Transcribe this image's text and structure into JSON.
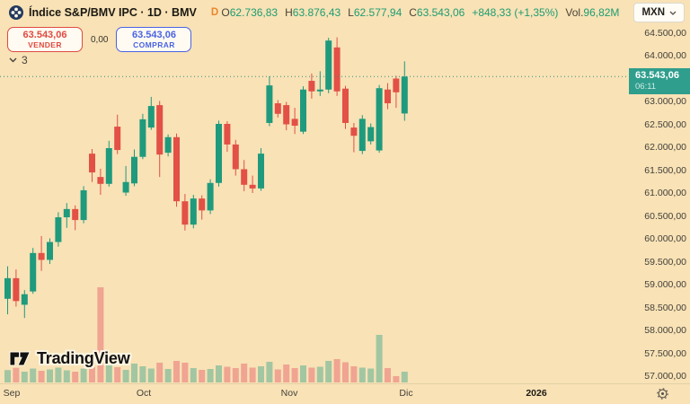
{
  "header": {
    "title": "Índice S&P/BMV IPC · 1D · BMV",
    "interval_letter": "D",
    "ohlc": {
      "o_label": "O",
      "o_value": "62.736,83",
      "h_label": "H",
      "h_value": "63.876,43",
      "l_label": "L",
      "l_value": "62.577,94",
      "c_label": "C",
      "c_value": "63.543,06",
      "change": "+848,33 (+1,35%)"
    },
    "vol_label": "Vol.",
    "vol_value": "96,82M",
    "currency": "MXN"
  },
  "trade_panel": {
    "sell_price": "63.543,06",
    "sell_label": "VENDER",
    "spread": "0,00",
    "buy_price": "63.543,06",
    "buy_label": "COMPRAR",
    "collapse_count": "3"
  },
  "price_scale": {
    "current_price": "63.543,06",
    "current_time": "06:11"
  },
  "logo": {
    "brand": "TradingView"
  },
  "colors": {
    "background": "#f8e2b6",
    "up": "#1f9a7d",
    "down": "#e25046",
    "vol_up": "#a2c6a2",
    "vol_down": "#f0a492",
    "accent": "#2f9e8d",
    "price_line": "#34907e",
    "sell_red": "#df4a41",
    "buy_blue": "#4a63e4",
    "interval_orange": "#e8872e",
    "value_green": "#1e9c72"
  },
  "chart_data": {
    "type": "candlestick",
    "title": "Índice S&P/BMV IPC, 1D, BMV",
    "symbol": "Índice S&P/BMV IPC",
    "exchange": "BMV",
    "interval": "1D",
    "currency": "MXN",
    "ohlc_today": {
      "open": 62736.83,
      "high": 63876.43,
      "low": 62577.94,
      "close": 63543.06,
      "change": 848.33,
      "change_pct": 1.35,
      "volume_label": "96,82M"
    },
    "current_price": 63543.06,
    "current_price_time": "06:11",
    "ylim": [
      56800,
      64800
    ],
    "y_ticks": [
      64500,
      64000,
      63500,
      63000,
      62500,
      62000,
      61500,
      61000,
      60500,
      60000,
      59500,
      59000,
      58500,
      58000,
      57500,
      57000
    ],
    "time_labels": [
      {
        "text": "Sep",
        "x": 13,
        "bold": false
      },
      {
        "text": "Oct",
        "x": 160,
        "bold": false
      },
      {
        "text": "Nov",
        "x": 322,
        "bold": false
      },
      {
        "text": "Dic",
        "x": 452,
        "bold": false
      },
      {
        "text": "2026",
        "x": 597,
        "bold": true
      }
    ],
    "volume_unit": "M (estimated from bar heights)",
    "candles_format": [
      "open",
      "high",
      "low",
      "close",
      "volume_m"
    ],
    "candles": [
      [
        58690,
        59400,
        58350,
        59140,
        55
      ],
      [
        59140,
        59330,
        58520,
        58640,
        65
      ],
      [
        58560,
        58880,
        58270,
        58790,
        48
      ],
      [
        58850,
        59800,
        58800,
        59690,
        62
      ],
      [
        59690,
        60060,
        59300,
        59540,
        52
      ],
      [
        59540,
        60010,
        59450,
        59930,
        58
      ],
      [
        59930,
        60580,
        59830,
        60470,
        66
      ],
      [
        60470,
        60780,
        60240,
        60650,
        54
      ],
      [
        60650,
        60730,
        60190,
        60410,
        48
      ],
      [
        60410,
        61150,
        60340,
        61060,
        62
      ],
      [
        61860,
        61960,
        61240,
        61450,
        70
      ],
      [
        61350,
        61530,
        60960,
        61200,
        424
      ],
      [
        61200,
        62140,
        61140,
        61980,
        76
      ],
      [
        62450,
        62710,
        61850,
        61940,
        68
      ],
      [
        61010,
        61590,
        60940,
        61240,
        56
      ],
      [
        61210,
        61950,
        61150,
        61790,
        84
      ],
      [
        61790,
        62730,
        61740,
        62610,
        72
      ],
      [
        62430,
        63100,
        62380,
        62900,
        62
      ],
      [
        62920,
        63010,
        61350,
        61840,
        88
      ],
      [
        61880,
        62280,
        61800,
        62220,
        60
      ],
      [
        62220,
        62300,
        60700,
        60820,
        96
      ],
      [
        60820,
        60980,
        60180,
        60310,
        88
      ],
      [
        60310,
        60960,
        60230,
        60880,
        64
      ],
      [
        60880,
        60950,
        60420,
        60620,
        56
      ],
      [
        60620,
        61300,
        60540,
        61220,
        60
      ],
      [
        61220,
        62580,
        61140,
        62510,
        76
      ],
      [
        62510,
        62570,
        61900,
        62060,
        70
      ],
      [
        62060,
        62160,
        61380,
        61520,
        64
      ],
      [
        61520,
        61720,
        61040,
        61180,
        84
      ],
      [
        61180,
        61380,
        61000,
        61100,
        66
      ],
      [
        61100,
        61980,
        61050,
        61860,
        72
      ],
      [
        62530,
        63550,
        62460,
        63350,
        92
      ],
      [
        62960,
        63030,
        62650,
        62730,
        58
      ],
      [
        62920,
        62990,
        62370,
        62500,
        80
      ],
      [
        62620,
        62860,
        62290,
        62470,
        64
      ],
      [
        62340,
        63330,
        62290,
        63260,
        76
      ],
      [
        63450,
        63610,
        63060,
        63220,
        66
      ],
      [
        63220,
        63660,
        63120,
        63260,
        70
      ],
      [
        63260,
        64390,
        63180,
        64330,
        96
      ],
      [
        64180,
        64400,
        63120,
        63220,
        104
      ],
      [
        63280,
        63340,
        62400,
        62530,
        90
      ],
      [
        62430,
        62530,
        61890,
        62250,
        72
      ],
      [
        61920,
        62700,
        61850,
        62620,
        66
      ],
      [
        62130,
        62520,
        62060,
        62440,
        62
      ],
      [
        61930,
        63360,
        61880,
        63290,
        212
      ],
      [
        63260,
        63400,
        62830,
        62960,
        64
      ],
      [
        63500,
        63560,
        62860,
        63200,
        28
      ],
      [
        62736.83,
        63876.43,
        62577.94,
        63543.06,
        48
      ]
    ]
  }
}
